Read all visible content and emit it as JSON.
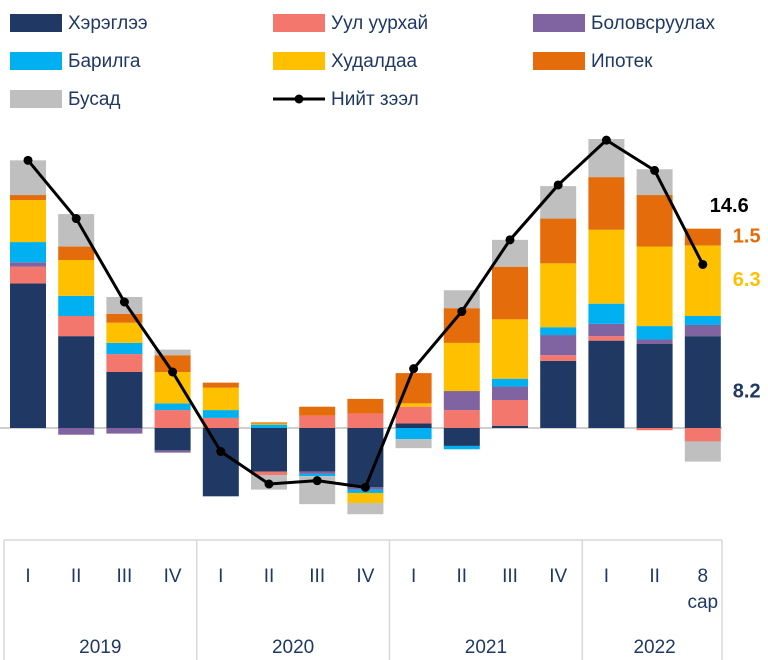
{
  "chart_data": {
    "type": "bar",
    "stacked": true,
    "groups": [
      {
        "name": "2019",
        "categories": [
          "I",
          "II",
          "III",
          "IV"
        ]
      },
      {
        "name": "2020",
        "categories": [
          "I",
          "II",
          "III",
          "IV"
        ]
      },
      {
        "name": "2021",
        "categories": [
          "I",
          "II",
          "III",
          "IV"
        ]
      },
      {
        "name": "2022",
        "categories": [
          "I",
          "II",
          "8 сар"
        ]
      }
    ],
    "series": [
      {
        "name": "Хэрэглээ",
        "color": "#1f3864",
        "values": [
          12.9,
          8.2,
          5.0,
          -2.0,
          -6.1,
          -3.9,
          -3.9,
          -5.3,
          0.4,
          -1.6,
          0.2,
          6.0,
          7.8,
          7.5,
          8.2
        ]
      },
      {
        "name": "Уул уурхай",
        "color": "#f4776e",
        "values": [
          1.5,
          1.8,
          1.6,
          1.6,
          0.9,
          -0.3,
          1.1,
          1.3,
          1.5,
          1.6,
          2.3,
          0.5,
          0.4,
          -0.2,
          -1.2
        ]
      },
      {
        "name": "Боловсруулах",
        "color": "#8064a2",
        "values": [
          0.4,
          -0.6,
          -0.5,
          -0.2,
          0,
          0,
          -0.2,
          -0.2,
          0,
          1.7,
          1.2,
          1.8,
          1.1,
          0.4,
          1.0
        ]
      },
      {
        "name": "Барилга",
        "color": "#00b0f0",
        "values": [
          1.8,
          1.8,
          1.0,
          0.6,
          0.7,
          0.3,
          -0.2,
          -0.3,
          -1.0,
          -0.3,
          0.7,
          0.7,
          1.8,
          1.2,
          0.8
        ]
      },
      {
        "name": "Худалдаа",
        "color": "#ffc000",
        "values": [
          3.75,
          3.2,
          1.8,
          2.8,
          2.0,
          0.1,
          0,
          -0.9,
          0.3,
          4.3,
          5.3,
          5.7,
          6.6,
          7.1,
          6.3
        ]
      },
      {
        "name": "Ипотек",
        "color": "#e46c0a",
        "values": [
          0.45,
          1.2,
          0.8,
          1.5,
          0.45,
          0.1,
          0.8,
          1.3,
          2.7,
          3.1,
          4.7,
          4.0,
          4.7,
          4.6,
          1.5
        ]
      },
      {
        "name": "Бусад",
        "color": "#bfbfbf",
        "values": [
          3.1,
          2.9,
          1.5,
          0.5,
          0,
          -1.3,
          -2.5,
          -1.0,
          -0.8,
          1.6,
          2.4,
          2.9,
          3.4,
          2.3,
          -1.8
        ]
      }
    ],
    "line": {
      "name": "Нийт зээл",
      "color": "#000000",
      "values": [
        23.9,
        18.7,
        11.25,
        5.0,
        -2.1,
        -5.0,
        -4.7,
        -5.3,
        5.3,
        10.4,
        16.8,
        21.7,
        25.7,
        23.0,
        14.6
      ]
    },
    "labeled": [
      {
        "path": "line.values.14",
        "color": "#000000"
      },
      {
        "path": "series.5.values.14",
        "color": "#e46c0a"
      },
      {
        "path": "series.4.values.14",
        "color": "#ffc000"
      },
      {
        "path": "series.0.values.14",
        "color": "#1f3864"
      }
    ]
  }
}
